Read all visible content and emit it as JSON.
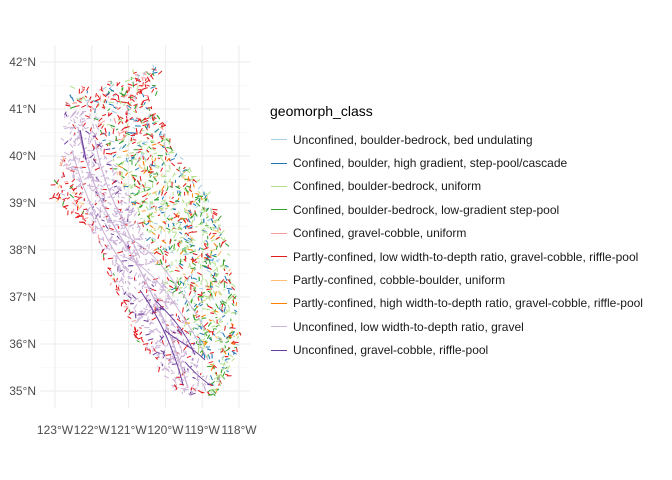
{
  "legend": {
    "title": "geomorph_class",
    "items": [
      {
        "label": "Unconfined, boulder-bedrock, bed undulating",
        "color": "#a6cee3"
      },
      {
        "label": "Confined, boulder, high gradient, step-pool/cascade",
        "color": "#1f78b4"
      },
      {
        "label": "Confined, boulder-bedrock, uniform",
        "color": "#b2df8a"
      },
      {
        "label": "Confined, boulder-bedrock, low-gradient step-pool",
        "color": "#33a02c"
      },
      {
        "label": "Confined, gravel-cobble, uniform",
        "color": "#fb9a99"
      },
      {
        "label": "Partly-confined, low width-to-depth ratio, gravel-cobble, riffle-pool",
        "color": "#e31a1c"
      },
      {
        "label": "Partly-confined, cobble-boulder, uniform",
        "color": "#fdbf6f"
      },
      {
        "label": "Partly-confined, high width-to-depth ratio, gravel-cobble, riffle-pool",
        "color": "#ff7f00"
      },
      {
        "label": "Unconfined, low width-to-depth ratio, gravel",
        "color": "#cab2d6"
      },
      {
        "label": "Unconfined, gravel-cobble, riffle-pool",
        "color": "#6a3d9a"
      }
    ]
  },
  "axes": {
    "y_ticks": [
      "42°N",
      "41°N",
      "40°N",
      "39°N",
      "38°N",
      "37°N",
      "36°N",
      "35°N"
    ],
    "x_ticks": [
      "123°W",
      "122°W",
      "121°W",
      "120°W",
      "119°W",
      "118°W"
    ]
  },
  "map": {
    "region": "California stream network",
    "grid": true
  }
}
